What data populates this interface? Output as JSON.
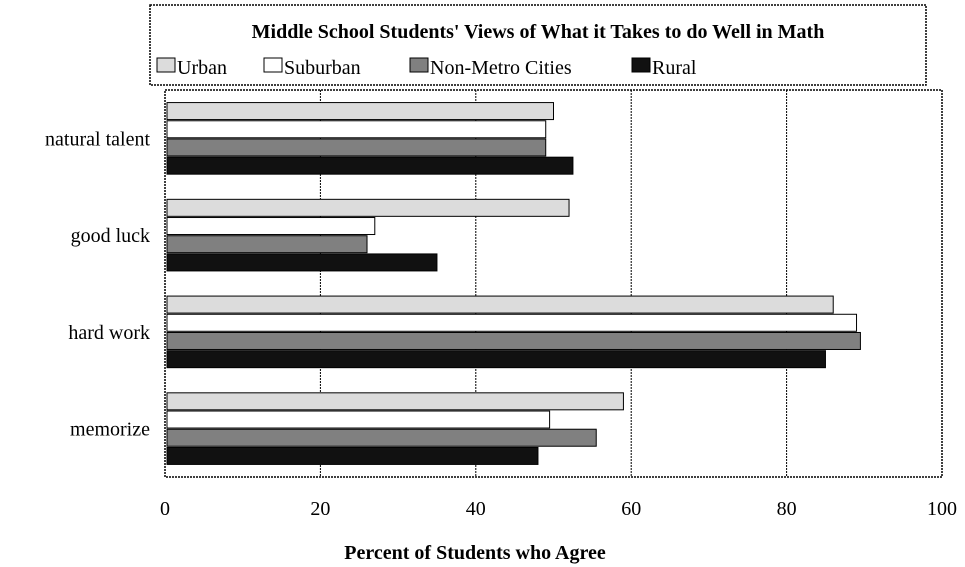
{
  "chart_data": {
    "type": "bar",
    "orientation": "horizontal",
    "title": "Middle School Students' Views of What it Takes to do Well in Math",
    "xlabel": "Percent of Students who Agree",
    "ylabel": "",
    "xlim": [
      0,
      100
    ],
    "xticks": [
      "0",
      "20",
      "40",
      "60",
      "80",
      "100"
    ],
    "xtick_values": [
      0,
      20,
      40,
      60,
      80,
      100
    ],
    "grid": "vertical, dashed",
    "legend_position": "top",
    "categories": [
      "natural talent",
      "good luck",
      "hard work",
      "memorize"
    ],
    "series": [
      {
        "name": "Urban",
        "color": "#dcdcdc",
        "values": [
          50,
          52,
          86,
          59
        ]
      },
      {
        "name": "Suburban",
        "color": "#ffffff",
        "values": [
          49,
          27,
          89,
          49.5
        ]
      },
      {
        "name": "Non-Metro Cities",
        "color": "#808080",
        "values": [
          49,
          26,
          89.5,
          55.5
        ]
      },
      {
        "name": "Rural",
        "color": "#111111",
        "values": [
          52.5,
          35,
          85,
          48
        ]
      }
    ]
  }
}
